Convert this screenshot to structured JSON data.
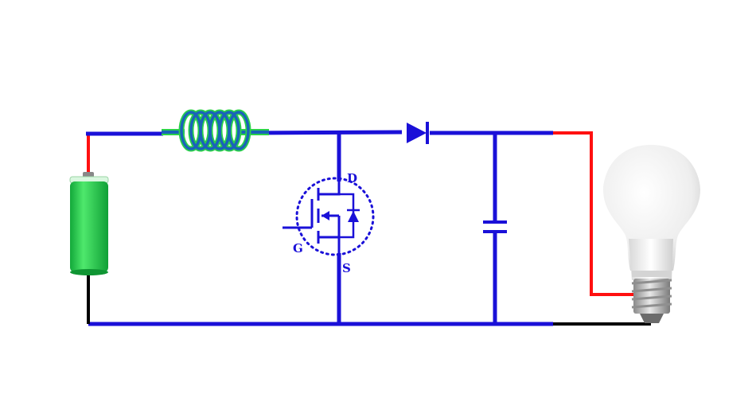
{
  "colors": {
    "wire": "#1a10d8",
    "positive_wire": "#ff1010",
    "negative_wire": "#000000",
    "battery": "#22d34a",
    "coil": "#1a63b8",
    "coil_glow": "#2bd24a",
    "bulb_glass": "#eeeeee",
    "bulb_base": "#bfbfbf"
  },
  "components": {
    "battery": {
      "icon": "battery-icon"
    },
    "inductor": {
      "icon": "coil-icon"
    },
    "mosfet": {
      "icon": "mosfet-icon",
      "drain_label": "D",
      "gate_label": "G",
      "source_label": "S"
    },
    "diode": {
      "icon": "diode-icon"
    },
    "capacitor": {
      "icon": "capacitor-icon"
    },
    "bulb": {
      "icon": "light-bulb-icon"
    }
  }
}
